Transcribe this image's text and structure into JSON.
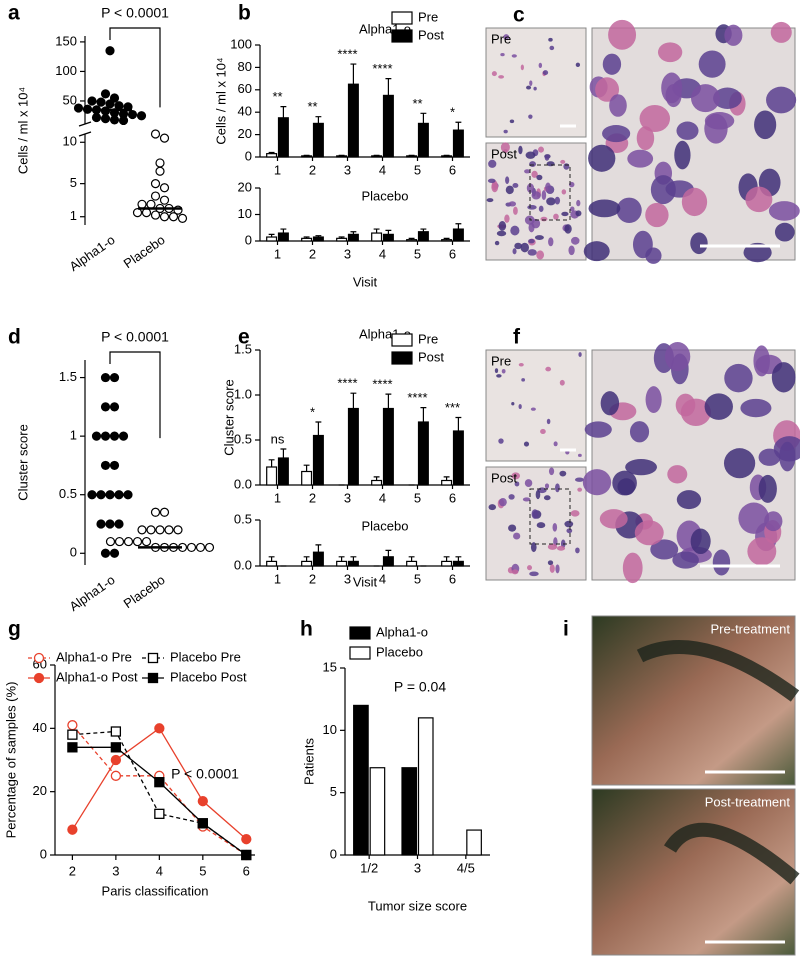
{
  "chart_data": [
    {
      "type": "dot",
      "label": "a",
      "ylabel": "Cells / ml x 10⁴",
      "annotation": "P < 0.0001",
      "categories": [
        "Alpha1-o",
        "Placebo"
      ],
      "groups": [
        {
          "fill": "#000000",
          "median": 35,
          "values": [
            135,
            62,
            55,
            50,
            48,
            45,
            42,
            40,
            38,
            36,
            35,
            33,
            30,
            28,
            27,
            25,
            22,
            20,
            18,
            17
          ]
        },
        {
          "fill": "#ffffff",
          "median": 2,
          "values": [
            11,
            10.5,
            7.5,
            6.5,
            5,
            4.5,
            3.5,
            3,
            2.5,
            2.5,
            2,
            2,
            1.8,
            1.5,
            1.5,
            1.2,
            1,
            1,
            0.8
          ]
        }
      ],
      "ylim": [
        0,
        160
      ],
      "ybreak": 11,
      "yticks": [
        1,
        5,
        10,
        50,
        100,
        150
      ]
    },
    {
      "type": "bar",
      "label": "b",
      "title": "Alpha1-o",
      "ylabel": "Cells / ml x 10⁴",
      "categories": [
        "1",
        "2",
        "3",
        "4",
        "5",
        "6"
      ],
      "series": [
        {
          "name": "Pre",
          "color": "#ffffff",
          "values": [
            3,
            1,
            1,
            1,
            1,
            1
          ],
          "errors": [
            1,
            0.5,
            0.5,
            0.5,
            0.5,
            0.5
          ]
        },
        {
          "name": "Post",
          "color": "#000000",
          "values": [
            35,
            30,
            65,
            55,
            30,
            24
          ],
          "errors": [
            10,
            6,
            18,
            15,
            9,
            7
          ]
        }
      ],
      "annotations": [
        "**",
        "**",
        "****",
        "****",
        "**",
        "*"
      ],
      "ylim": [
        0,
        100
      ],
      "yticks": [
        0,
        20,
        40,
        60,
        80,
        100
      ]
    },
    {
      "type": "bar",
      "title": "Placebo",
      "xlabel": "Visit",
      "categories": [
        "1",
        "2",
        "3",
        "4",
        "5",
        "6"
      ],
      "series": [
        {
          "color": "#ffffff",
          "values": [
            1.5,
            1,
            1,
            3,
            0.5,
            0.5
          ],
          "errors": [
            1,
            0.5,
            0.5,
            1.5,
            0.5,
            0.5
          ]
        },
        {
          "color": "#000000",
          "values": [
            3,
            1.5,
            2.5,
            2.5,
            3.5,
            4.5
          ],
          "errors": [
            1.5,
            0.5,
            1,
            1.5,
            1,
            2
          ]
        }
      ],
      "ylim": [
        0,
        20
      ],
      "yticks": [
        0,
        10,
        20
      ]
    },
    {
      "type": "dot",
      "label": "d",
      "ylabel": "Cluster score",
      "annotation": "P < 0.0001",
      "categories": [
        "Alpha1-o",
        "Placebo"
      ],
      "groups": [
        {
          "fill": "#000000",
          "median": 0.5,
          "values": [
            1.5,
            1.5,
            1.25,
            1.25,
            1,
            1,
            1,
            1,
            0.75,
            0.75,
            0.5,
            0.5,
            0.5,
            0.5,
            0.5,
            0.25,
            0.25,
            0.25,
            0,
            0
          ]
        },
        {
          "fill": "#ffffff",
          "median": 0.05,
          "values": [
            0.35,
            0.35,
            0.2,
            0.2,
            0.2,
            0.2,
            0.2,
            0.1,
            0.1,
            0.1,
            0.1,
            0.1,
            0.05,
            0.05,
            0.05,
            0.05,
            0.05,
            0.05,
            0.05
          ]
        }
      ],
      "ylim": [
        -0.1,
        1.65
      ],
      "yticks": [
        0,
        0.5,
        1,
        1.5
      ]
    },
    {
      "type": "bar",
      "label": "e",
      "title": "Alpha1-o",
      "ylabel": "Cluster score",
      "categories": [
        "1",
        "2",
        "3",
        "4",
        "5",
        "6"
      ],
      "series": [
        {
          "name": "Pre",
          "color": "#ffffff",
          "values": [
            0.2,
            0.15,
            0,
            0.05,
            0,
            0.05
          ],
          "errors": [
            0.08,
            0.07,
            0,
            0.04,
            0,
            0.04
          ]
        },
        {
          "name": "Post",
          "color": "#000000",
          "values": [
            0.3,
            0.55,
            0.85,
            0.85,
            0.7,
            0.6
          ],
          "errors": [
            0.1,
            0.15,
            0.17,
            0.16,
            0.16,
            0.15
          ]
        }
      ],
      "annotations": [
        "ns",
        "*",
        "****",
        "****",
        "****",
        "***"
      ],
      "ylim": [
        0,
        1.5
      ],
      "yticks": [
        {
          "value": 0,
          "label": "0.0"
        },
        0.5,
        {
          "value": 1,
          "label": "1.0"
        },
        1.5
      ]
    },
    {
      "type": "bar",
      "title": "Placebo",
      "xlabel": "Visit",
      "categories": [
        "1",
        "2",
        "3",
        "4",
        "5",
        "6"
      ],
      "series": [
        {
          "color": "#ffffff",
          "values": [
            0.05,
            0.05,
            0.05,
            0,
            0.05,
            0.05
          ],
          "errors": [
            0.05,
            0.05,
            0.05,
            0,
            0.05,
            0.05
          ]
        },
        {
          "color": "#000000",
          "values": [
            0,
            0.15,
            0.05,
            0.1,
            0,
            0.05
          ],
          "errors": [
            0,
            0.08,
            0.05,
            0.07,
            0,
            0.05
          ]
        }
      ],
      "ylim": [
        0,
        0.5
      ],
      "yticks": [
        {
          "value": 0,
          "label": "0.0"
        },
        0.5
      ]
    },
    {
      "type": "line",
      "label": "g",
      "xlabel": "Paris classification",
      "ylabel": "Percentage of samples (%)",
      "annotation": "P < 0.0001",
      "x": [
        2,
        3,
        4,
        5,
        6
      ],
      "xlim": [
        1.6,
        6.2
      ],
      "xticks": [
        2,
        3,
        4,
        5,
        6
      ],
      "series": [
        {
          "name": "Alpha1-o Pre",
          "color": "#e8412c",
          "dashed": true,
          "marker": "circle",
          "filled": false,
          "values": [
            41,
            25,
            25,
            9,
            0
          ]
        },
        {
          "name": "Alpha1-o Post",
          "color": "#e8412c",
          "dashed": false,
          "marker": "circle",
          "filled": true,
          "values": [
            8,
            30,
            40,
            17,
            5
          ]
        },
        {
          "name": "Placebo Pre",
          "color": "#000000",
          "dashed": true,
          "marker": "square",
          "filled": false,
          "values": [
            38,
            39,
            13,
            10,
            0
          ]
        },
        {
          "name": "Placebo Post",
          "color": "#000000",
          "dashed": false,
          "marker": "square",
          "filled": true,
          "values": [
            34,
            34,
            23,
            10,
            0
          ]
        }
      ],
      "ylim": [
        0,
        60
      ],
      "yticks": [
        0,
        20,
        40,
        60
      ]
    },
    {
      "type": "bar",
      "label": "h",
      "xlabel": "Tumor size score",
      "ylabel": "Patients",
      "annotation": "P = 0.04",
      "categories": [
        "1/2",
        "3",
        "4/5"
      ],
      "series": [
        {
          "name": "Alpha1-o",
          "color": "#000000",
          "values": [
            12,
            7,
            0
          ]
        },
        {
          "name": "Placebo",
          "color": "#ffffff",
          "values": [
            7,
            11,
            2
          ]
        }
      ],
      "ylim": [
        0,
        15
      ],
      "yticks": [
        0,
        5,
        10,
        15
      ]
    }
  ],
  "images": [
    {
      "label": "c",
      "texts": [
        "Pre",
        "Post"
      ]
    },
    {
      "label": "f",
      "texts": [
        "Pre",
        "Post"
      ]
    },
    {
      "label": "i",
      "texts": [
        "Pre-treatment",
        "Post-treatment"
      ]
    }
  ]
}
